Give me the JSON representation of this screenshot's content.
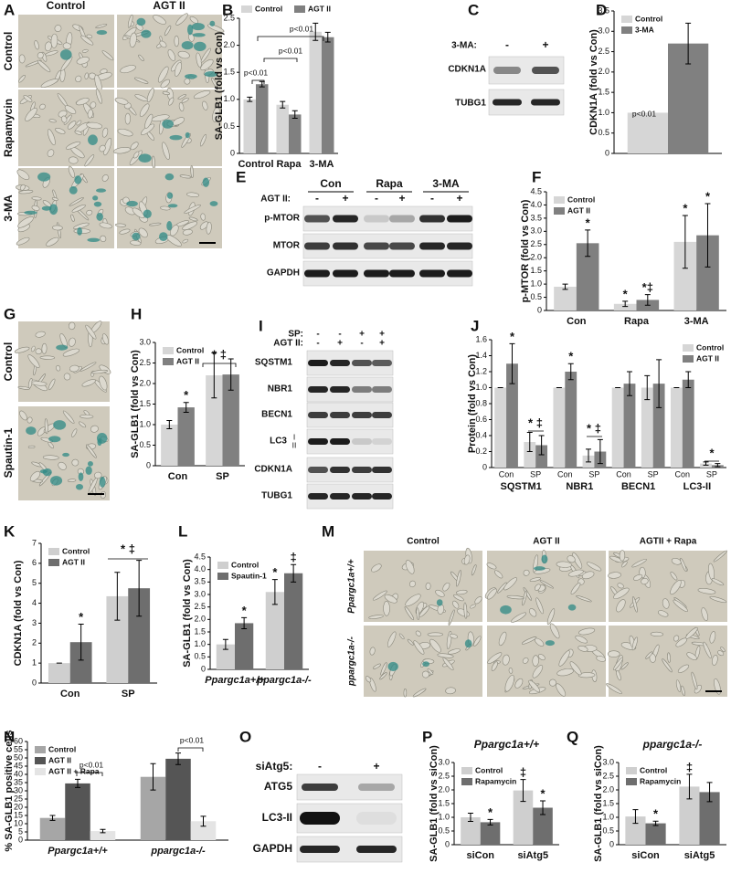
{
  "panel_letters": [
    "A",
    "B",
    "C",
    "D",
    "E",
    "F",
    "G",
    "H",
    "I",
    "J",
    "K",
    "L",
    "M",
    "N",
    "O",
    "P",
    "Q"
  ],
  "micrographs": {
    "A": {
      "columns": [
        "Control",
        "AGT II"
      ],
      "rows": [
        "Control",
        "Rapamycin",
        "3-MA"
      ]
    },
    "G": {
      "rows": [
        "Control",
        "Spautin-1"
      ]
    },
    "M": {
      "columns": [
        "Control",
        "AGT II",
        "AGTII + Rapa"
      ],
      "rows": [
        "Ppargc1a+/+",
        "ppargc1a-/-"
      ]
    }
  },
  "blots": {
    "C": {
      "header_label": "3-MA:",
      "lanes": [
        "-",
        "+"
      ],
      "rows": [
        "CDKN1A",
        "TUBG1"
      ]
    },
    "E": {
      "groups": [
        "Con",
        "Rapa",
        "3-MA"
      ],
      "header_label": "AGT II:",
      "lanes": [
        "-",
        "+",
        "-",
        "+",
        "-",
        "+"
      ],
      "rows": [
        "p-MTOR",
        "MTOR",
        "GAPDH"
      ]
    },
    "I": {
      "header_labels": [
        "SP:",
        "AGT II:"
      ],
      "lanes": [
        [
          "-",
          "-",
          "+",
          "+"
        ],
        [
          "-",
          "+",
          "-",
          "+"
        ]
      ],
      "rows": [
        "SQSTM1",
        "NBR1",
        "BECN1",
        "LC3",
        "CDKN1A",
        "TUBG1"
      ],
      "lc3_forms": [
        "I",
        "II"
      ]
    },
    "O": {
      "header_label": "siAtg5:",
      "lanes": [
        "-",
        "+"
      ],
      "rows": [
        "ATG5",
        "LC3-II",
        "GAPDH"
      ]
    }
  },
  "chart_data": [
    {
      "type": "bar",
      "y_label": "SA-GLB1 (fold vs Con)",
      "categories": [
        "Control",
        "Rapa",
        "3-MA"
      ],
      "legend": "above",
      "series": [
        {
          "name": "Control",
          "color": "#d6d6d6",
          "values": [
            1.0,
            0.9,
            2.25
          ],
          "errors": [
            0.04,
            0.06,
            0.16
          ]
        },
        {
          "name": "AGT II",
          "color": "#808080",
          "values": [
            1.28,
            0.72,
            2.15
          ],
          "errors": [
            0.05,
            0.07,
            0.09
          ]
        }
      ],
      "ylim": [
        0,
        2.5
      ],
      "yticks": [
        0,
        0.5,
        {
          "value": 1,
          "label": "1.0"
        },
        1.5,
        {
          "value": 2,
          "label": "2.0"
        },
        2.5
      ],
      "annotations": [
        "p<0.01",
        "p<0.01",
        "p<0.01"
      ]
    },
    {
      "type": "bar",
      "y_label": "CDKN1A (fold vs Con)",
      "categories": [
        null
      ],
      "legend": "upper left",
      "series": [
        {
          "name": "Control",
          "color": "#d6d6d6",
          "values": [
            1.0
          ]
        },
        {
          "name": "3-MA",
          "color": "#808080",
          "values": [
            2.7
          ],
          "errors": [
            0.5
          ]
        }
      ],
      "ylim": [
        0,
        3.5
      ],
      "yticks": [
        0,
        0.5,
        {
          "value": 1,
          "label": "1.0"
        },
        1.5,
        {
          "value": 2,
          "label": "2.0"
        },
        2.5,
        {
          "value": 3,
          "label": "3.0"
        },
        3.5
      ],
      "annotations": [
        "p<0.01"
      ]
    },
    {
      "type": "bar",
      "y_label": "p-MTOR (fold vs Con)",
      "categories": [
        "Con",
        "Rapa",
        "3-MA"
      ],
      "legend": "upper left",
      "series": [
        {
          "name": "Control",
          "color": "#d6d6d6",
          "values": [
            0.9,
            0.25,
            2.6
          ],
          "errors": [
            0.1,
            0.1,
            1.0
          ],
          "sig": [
            null,
            "*",
            "*"
          ]
        },
        {
          "name": "AGT II",
          "color": "#808080",
          "values": [
            2.55,
            0.4,
            2.85
          ],
          "errors": [
            0.5,
            0.2,
            1.2
          ],
          "sig": [
            "*",
            "*‡",
            "*"
          ]
        }
      ],
      "ylim": [
        0,
        4.5
      ],
      "yticks": [
        0,
        0.5,
        {
          "value": 1,
          "label": "1.0"
        },
        1.5,
        {
          "value": 2,
          "label": "2.0"
        },
        2.5,
        {
          "value": 3,
          "label": "3.0"
        },
        3.5,
        {
          "value": 4,
          "label": "4.0"
        },
        4.5
      ]
    },
    {
      "type": "bar",
      "y_label": "SA-GLB1 (fold vs Con)",
      "categories": [
        "Con",
        "SP"
      ],
      "legend": "upper left",
      "series": [
        {
          "name": "Control",
          "color": "#d6d6d6",
          "values": [
            1.0,
            2.2
          ],
          "errors": [
            0.1,
            0.55
          ]
        },
        {
          "name": "AGT II",
          "color": "#808080",
          "values": [
            1.42,
            2.22
          ],
          "errors": [
            0.12,
            0.38
          ],
          "sig": [
            "*",
            null
          ]
        }
      ],
      "ylim": [
        0,
        3
      ],
      "yticks": [
        0,
        0.5,
        {
          "value": 1,
          "label": "1.0"
        },
        1.5,
        {
          "value": 2,
          "label": "2.0"
        },
        2.5,
        {
          "value": 3,
          "label": "3.0"
        }
      ],
      "annotations": [
        "* ‡"
      ]
    },
    {
      "type": "bar",
      "y_label": "Protein (fold vs Con)",
      "categories": [
        "Con",
        "SP",
        "Con",
        "SP",
        "Con",
        "SP",
        "Con",
        "SP"
      ],
      "groups": [
        "SQSTM1",
        "NBR1",
        "BECN1",
        "LC3-II"
      ],
      "legend": "upper right",
      "series": [
        {
          "name": "Control",
          "color": "#d6d6d6",
          "values": [
            1.0,
            0.32,
            1.0,
            0.15,
            1.0,
            1.0,
            1.0,
            0.05
          ],
          "errors": [
            0,
            0.12,
            0,
            0.08,
            0,
            0.15,
            0,
            0.02
          ]
        },
        {
          "name": "AGT II",
          "color": "#808080",
          "values": [
            1.3,
            0.28,
            1.2,
            0.2,
            1.05,
            1.05,
            1.1,
            0.03
          ],
          "errors": [
            0.25,
            0.12,
            0.1,
            0.15,
            0.15,
            0.3,
            0.1,
            0.02
          ],
          "sig": [
            "*",
            null,
            "*",
            null,
            null,
            null,
            null,
            null
          ]
        }
      ],
      "ylim": [
        0,
        1.6
      ],
      "yticks": [
        0,
        0.2,
        0.4,
        0.6,
        0.8,
        {
          "value": 1,
          "label": "1.0"
        },
        1.2,
        1.4,
        1.6
      ],
      "annotations": [
        "* ‡",
        "* ‡",
        "*"
      ]
    },
    {
      "type": "bar",
      "y_label": "CDKN1A (fold vs Con)",
      "categories": [
        "Con",
        "SP"
      ],
      "legend": "upper left",
      "series": [
        {
          "name": "Control",
          "color": "#cfcfcf",
          "values": [
            1.0,
            4.35
          ],
          "errors": [
            0,
            1.2
          ]
        },
        {
          "name": "AGT II",
          "color": "#6e6e6e",
          "values": [
            2.05,
            4.75
          ],
          "errors": [
            0.9,
            1.4
          ],
          "sig": [
            "*",
            null
          ]
        }
      ],
      "ylim": [
        0,
        7
      ],
      "yticks": [
        0,
        1,
        2,
        3,
        4,
        5,
        6,
        7
      ],
      "annotations": [
        "* ‡"
      ]
    },
    {
      "type": "bar",
      "y_label": "SA-GLB1 (fold vs Con)",
      "categories": [
        "Ppargc1a+/+",
        "ppargc1a-/-"
      ],
      "legend": "upper left",
      "series": [
        {
          "name": "Control",
          "color": "#cfcfcf",
          "values": [
            1.0,
            3.1
          ],
          "errors": [
            0.2,
            0.5
          ],
          "sig": [
            null,
            "*"
          ]
        },
        {
          "name": "Spautin-1",
          "color": "#6e6e6e",
          "values": [
            1.85,
            3.85
          ],
          "errors": [
            0.22,
            0.35
          ],
          "sig": [
            "*",
            "‡"
          ]
        }
      ],
      "ylim": [
        0,
        4.5
      ],
      "yticks": [
        0,
        0.5,
        {
          "value": 1,
          "label": "1.0"
        },
        1.5,
        {
          "value": 2,
          "label": "2.0"
        },
        2.5,
        {
          "value": 3,
          "label": "3.0"
        },
        3.5,
        {
          "value": 4,
          "label": "4.0"
        },
        4.5
      ]
    },
    {
      "type": "bar",
      "y_label": "% SA-GLB1 positive cells",
      "categories": [
        "Ppargc1a+/+",
        "ppargc1a-/-"
      ],
      "legend": "upper left",
      "series": [
        {
          "name": "Control",
          "color": "#a6a6a6",
          "values": [
            13.5,
            38.5
          ],
          "errors": [
            1.5,
            8
          ]
        },
        {
          "name": "AGT II",
          "color": "#555555",
          "values": [
            34.5,
            49.5
          ],
          "errors": [
            2.5,
            3.5
          ]
        },
        {
          "name": "AGT II + Rapa",
          "color": "#e4e4e4",
          "values": [
            5.5,
            11.5
          ],
          "errors": [
            1,
            3
          ]
        }
      ],
      "ylim": [
        0,
        60
      ],
      "yticks": [
        0,
        5,
        10,
        15,
        20,
        25,
        30,
        35,
        40,
        45,
        50,
        55,
        60
      ],
      "annotations": [
        "p<0.01",
        "p<0.01"
      ]
    },
    {
      "type": "bar",
      "title": "Ppargc1a+/+",
      "y_label": "SA-GLB1 (fold vs siCon)",
      "categories": [
        "siCon",
        "siAtg5"
      ],
      "legend": "upper left",
      "series": [
        {
          "name": "Control",
          "color": "#cfcfcf",
          "values": [
            1.0,
            1.98
          ],
          "errors": [
            0.15,
            0.4
          ],
          "sig": [
            null,
            "‡"
          ]
        },
        {
          "name": "Rapamycin",
          "color": "#6e6e6e",
          "values": [
            0.82,
            1.35
          ],
          "errors": [
            0.1,
            0.25
          ],
          "sig": [
            "*",
            "*"
          ]
        }
      ],
      "ylim": [
        0,
        3
      ],
      "yticks": [
        0,
        0.5,
        {
          "value": 1,
          "label": "1.0"
        },
        1.5,
        {
          "value": 2,
          "label": "2.0"
        },
        2.5,
        {
          "value": 3,
          "label": "3.0"
        }
      ]
    },
    {
      "type": "bar",
      "title": "ppargc1a-/-",
      "y_label": "SA-GLB1 (fold vs siCon)",
      "categories": [
        "siCon",
        "siAtg5"
      ],
      "legend": "upper left",
      "series": [
        {
          "name": "Control",
          "color": "#cfcfcf",
          "values": [
            1.03,
            2.12
          ],
          "errors": [
            0.25,
            0.45
          ],
          "sig": [
            null,
            "‡"
          ]
        },
        {
          "name": "Rapamycin",
          "color": "#6e6e6e",
          "values": [
            0.78,
            1.92
          ],
          "errors": [
            0.08,
            0.35
          ],
          "sig": [
            "*",
            null
          ]
        }
      ],
      "ylim": [
        0,
        3
      ],
      "yticks": [
        0,
        0.5,
        {
          "value": 1,
          "label": "1.0"
        },
        1.5,
        {
          "value": 2,
          "label": "2.0"
        },
        2.5,
        {
          "value": 3,
          "label": "3.0"
        }
      ]
    }
  ]
}
